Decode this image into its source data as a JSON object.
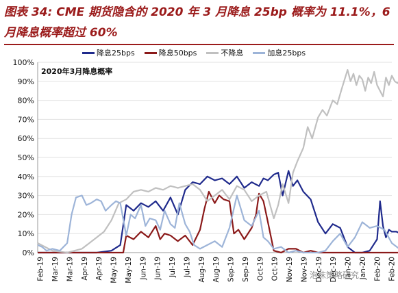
{
  "title": "图表 34: CME 期货隐含的 2020 年 3 月降息 25bp 概率为 11.1%，6 月降息概率超过 60%",
  "inset_label": "2020年3月降息概率",
  "watermark": "泡沫策略研究",
  "colors": {
    "title": "#9b1b1b",
    "cut25": "#1f2a8c",
    "cut50": "#8b1a1a",
    "nocut": "#c0c0c0",
    "hike25": "#9db4d8"
  },
  "chart_data": {
    "type": "line",
    "x_tick_labels": [
      "Feb-19",
      "Mar-19",
      "Mar-19",
      "Apr-19",
      "Apr-19",
      "May-19",
      "May-19",
      "Jun-19",
      "Jun-19",
      "Jul-19",
      "Jul-19",
      "Aug-19",
      "Aug-19",
      "Sep-19",
      "Sep-19",
      "Oct-19",
      "Oct-19",
      "Nov-19",
      "Nov-19",
      "Dec-19",
      "Dec-19",
      "Jan-20",
      "Jan-20",
      "Feb-20",
      "Feb-20"
    ],
    "y_tick_labels": [
      "0%",
      "10%",
      "20%",
      "30%",
      "40%",
      "50%",
      "60%",
      "70%",
      "80%",
      "90%",
      "100%"
    ],
    "ylim": [
      0,
      100
    ],
    "x_range": [
      0,
      24
    ],
    "legend_position": "top",
    "series": [
      {
        "name": "降息25bps",
        "color_key": "cut25",
        "points": [
          [
            0,
            0
          ],
          [
            4,
            0
          ],
          [
            5,
            1
          ],
          [
            5.6,
            4
          ],
          [
            6,
            25
          ],
          [
            6.5,
            22
          ],
          [
            7,
            26
          ],
          [
            7.5,
            24
          ],
          [
            8,
            27
          ],
          [
            8.5,
            22
          ],
          [
            9,
            29
          ],
          [
            9.5,
            20
          ],
          [
            10,
            33
          ],
          [
            10.5,
            37
          ],
          [
            11,
            36
          ],
          [
            11.5,
            40
          ],
          [
            12,
            38
          ],
          [
            12.5,
            39
          ],
          [
            13,
            36
          ],
          [
            13.5,
            40
          ],
          [
            14,
            34
          ],
          [
            14.5,
            37
          ],
          [
            15,
            35
          ],
          [
            15.3,
            39
          ],
          [
            15.6,
            38
          ],
          [
            16,
            41
          ],
          [
            16.3,
            42
          ],
          [
            16.6,
            30
          ],
          [
            17,
            43
          ],
          [
            17.3,
            35
          ],
          [
            17.6,
            38
          ],
          [
            18,
            32
          ],
          [
            18.5,
            28
          ],
          [
            19,
            16
          ],
          [
            19.5,
            10
          ],
          [
            20,
            15
          ],
          [
            20.5,
            13
          ],
          [
            21,
            3
          ],
          [
            21.5,
            0
          ],
          [
            22,
            0
          ],
          [
            22.5,
            1
          ],
          [
            23,
            7
          ],
          [
            23.2,
            27
          ],
          [
            23.4,
            14
          ],
          [
            23.6,
            8
          ],
          [
            23.8,
            12
          ],
          [
            24,
            11
          ],
          [
            24.3,
            11
          ],
          [
            24.6,
            10
          ],
          [
            24.9,
            7
          ]
        ]
      },
      {
        "name": "降息50bps",
        "color_key": "cut50",
        "points": [
          [
            0,
            0
          ],
          [
            5.8,
            0
          ],
          [
            6,
            9
          ],
          [
            6.5,
            7
          ],
          [
            7,
            11
          ],
          [
            7.5,
            8
          ],
          [
            8,
            14
          ],
          [
            8.3,
            7
          ],
          [
            8.6,
            10
          ],
          [
            9,
            9
          ],
          [
            9.5,
            6
          ],
          [
            10,
            9
          ],
          [
            10.5,
            4
          ],
          [
            11,
            12
          ],
          [
            11.3,
            23
          ],
          [
            11.6,
            32
          ],
          [
            12,
            26
          ],
          [
            12.3,
            30
          ],
          [
            12.6,
            28
          ],
          [
            13,
            27
          ],
          [
            13.3,
            10
          ],
          [
            13.6,
            12
          ],
          [
            14,
            7
          ],
          [
            14.5,
            13
          ],
          [
            14.8,
            20
          ],
          [
            15,
            31
          ],
          [
            15.3,
            27
          ],
          [
            15.6,
            16
          ],
          [
            16,
            1
          ],
          [
            16.5,
            0
          ],
          [
            17,
            2
          ],
          [
            17.5,
            2
          ],
          [
            18,
            0
          ],
          [
            18.5,
            1
          ],
          [
            19,
            0
          ],
          [
            24.9,
            0
          ]
        ]
      },
      {
        "name": "不降息",
        "color_key": "nocut",
        "points": [
          [
            0,
            5
          ],
          [
            1,
            1
          ],
          [
            2,
            0
          ],
          [
            3,
            2
          ],
          [
            4,
            8
          ],
          [
            4.5,
            11
          ],
          [
            5,
            17
          ],
          [
            5.5,
            26
          ],
          [
            6,
            28
          ],
          [
            6.5,
            32
          ],
          [
            7,
            33
          ],
          [
            7.5,
            32
          ],
          [
            8,
            34
          ],
          [
            8.5,
            33
          ],
          [
            9,
            35
          ],
          [
            9.5,
            34
          ],
          [
            10,
            35
          ],
          [
            10.5,
            36
          ],
          [
            11,
            33
          ],
          [
            11.5,
            27
          ],
          [
            12,
            30
          ],
          [
            12.5,
            33
          ],
          [
            13,
            28
          ],
          [
            13.5,
            35
          ],
          [
            14,
            33
          ],
          [
            14.5,
            27
          ],
          [
            15,
            30
          ],
          [
            15.5,
            32
          ],
          [
            16,
            18
          ],
          [
            16.3,
            25
          ],
          [
            16.6,
            36
          ],
          [
            17,
            26
          ],
          [
            17.3,
            42
          ],
          [
            17.6,
            48
          ],
          [
            18,
            55
          ],
          [
            18.3,
            66
          ],
          [
            18.6,
            60
          ],
          [
            19,
            71
          ],
          [
            19.3,
            75
          ],
          [
            19.6,
            72
          ],
          [
            20,
            80
          ],
          [
            20.3,
            78
          ],
          [
            20.6,
            86
          ],
          [
            21,
            96
          ],
          [
            21.2,
            90
          ],
          [
            21.4,
            94
          ],
          [
            21.6,
            88
          ],
          [
            21.8,
            93
          ],
          [
            22,
            91
          ],
          [
            22.2,
            85
          ],
          [
            22.4,
            92
          ],
          [
            22.6,
            89
          ],
          [
            22.8,
            95
          ],
          [
            23,
            88
          ],
          [
            23.2,
            85
          ],
          [
            23.4,
            82
          ],
          [
            23.6,
            92
          ],
          [
            23.8,
            88
          ],
          [
            24,
            93
          ],
          [
            24.2,
            90
          ],
          [
            24.4,
            89
          ],
          [
            24.6,
            92
          ],
          [
            24.9,
            92
          ]
        ]
      },
      {
        "name": "加息25bps",
        "color_key": "hike25",
        "points": [
          [
            0,
            4
          ],
          [
            0.3,
            3
          ],
          [
            0.6,
            1
          ],
          [
            1,
            2
          ],
          [
            1.5,
            1
          ],
          [
            2,
            5
          ],
          [
            2.3,
            20
          ],
          [
            2.6,
            29
          ],
          [
            3,
            30
          ],
          [
            3.3,
            25
          ],
          [
            3.6,
            26
          ],
          [
            4,
            28
          ],
          [
            4.3,
            27
          ],
          [
            4.6,
            22
          ],
          [
            5,
            25
          ],
          [
            5.3,
            27
          ],
          [
            5.6,
            26
          ],
          [
            6,
            9
          ],
          [
            6.3,
            20
          ],
          [
            6.6,
            18
          ],
          [
            7,
            25
          ],
          [
            7.3,
            14
          ],
          [
            7.6,
            18
          ],
          [
            8,
            17
          ],
          [
            8.3,
            12
          ],
          [
            8.6,
            22
          ],
          [
            9,
            15
          ],
          [
            9.3,
            13
          ],
          [
            9.6,
            26
          ],
          [
            10,
            15
          ],
          [
            10.3,
            11
          ],
          [
            10.6,
            4
          ],
          [
            11,
            2
          ],
          [
            11.5,
            4
          ],
          [
            12,
            6
          ],
          [
            12.5,
            3
          ],
          [
            13,
            13
          ],
          [
            13.5,
            30
          ],
          [
            14,
            17
          ],
          [
            14.5,
            14
          ],
          [
            15,
            22
          ],
          [
            15.3,
            8
          ],
          [
            15.6,
            6
          ],
          [
            16,
            2
          ],
          [
            16.5,
            3
          ],
          [
            17,
            0
          ],
          [
            17.5,
            1
          ],
          [
            18,
            0
          ],
          [
            18.5,
            0
          ],
          [
            19,
            0
          ],
          [
            19.5,
            1
          ],
          [
            20,
            6
          ],
          [
            20.5,
            10
          ],
          [
            21,
            3
          ],
          [
            21.5,
            8
          ],
          [
            22,
            16
          ],
          [
            22.5,
            13
          ],
          [
            23,
            14
          ],
          [
            23.5,
            12
          ],
          [
            24,
            5
          ],
          [
            24.5,
            2
          ],
          [
            24.9,
            1
          ]
        ]
      }
    ]
  }
}
